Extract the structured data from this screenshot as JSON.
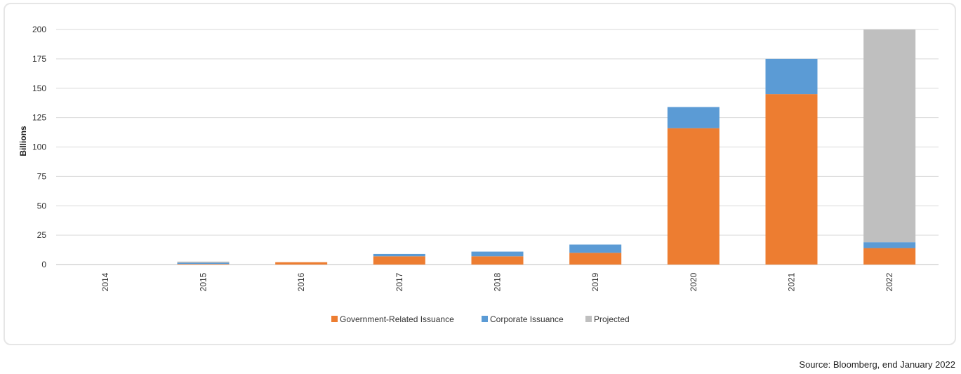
{
  "chart_data": {
    "type": "bar",
    "stacked": true,
    "ylabel": "Billions",
    "xlabel": "",
    "ylim": [
      0,
      200
    ],
    "yticks": [
      0,
      25,
      50,
      75,
      100,
      125,
      150,
      175,
      200
    ],
    "categories": [
      "2014",
      "2015",
      "2016",
      "2017",
      "2018",
      "2019",
      "2020",
      "2021",
      "2022"
    ],
    "series": [
      {
        "name": "Government-Related Issuance",
        "color": "#ED7D31",
        "values": [
          0,
          0.5,
          2,
          7,
          7,
          10,
          116,
          145,
          14
        ]
      },
      {
        "name": "Corporate Issuance",
        "color": "#5B9BD5",
        "values": [
          0,
          1,
          0,
          2,
          4,
          7,
          18,
          30,
          5
        ]
      },
      {
        "name": "Projected",
        "color": "#BFBFBF",
        "values": [
          0,
          1,
          0,
          0,
          0,
          0,
          0,
          0,
          181
        ]
      }
    ],
    "grid": true,
    "legend_position": "bottom"
  },
  "source_text": "Source: Bloomberg, end January 2022"
}
